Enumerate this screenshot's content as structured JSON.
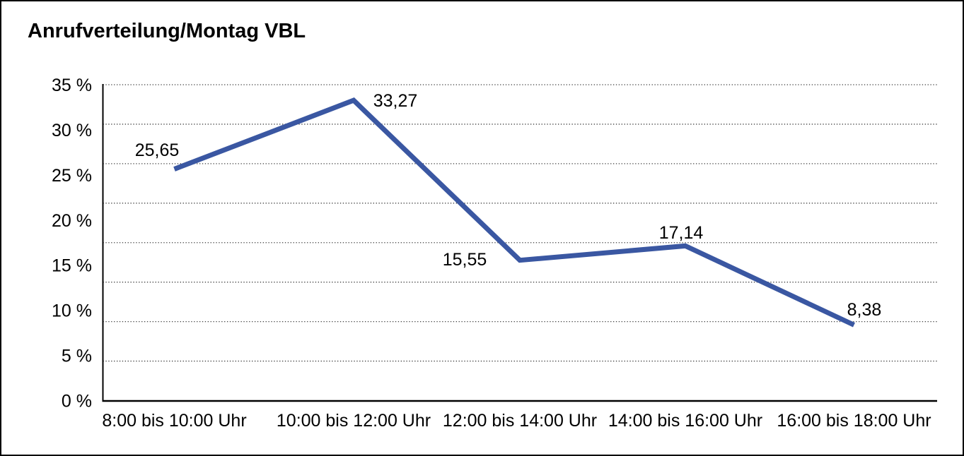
{
  "chart_data": {
    "type": "line",
    "title": "Anrufverteilung/Montag VBL",
    "categories": [
      "8:00 bis 10:00 Uhr",
      "10:00 bis 12:00 Uhr",
      "12:00 bis 14:00 Uhr",
      "14:00 bis 16:00 Uhr",
      "16:00 bis 18:00 Uhr"
    ],
    "values": [
      25.65,
      33.27,
      15.55,
      17.14,
      8.38
    ],
    "value_labels": [
      "25,65",
      "33,27",
      "15,55",
      "17,14",
      "8,38"
    ],
    "y_ticks": [
      {
        "value": 35,
        "label": "35 %"
      },
      {
        "value": 30,
        "label": "30 %"
      },
      {
        "value": 25,
        "label": "25 %"
      },
      {
        "value": 20,
        "label": "20 %"
      },
      {
        "value": 15,
        "label": "15 %"
      },
      {
        "value": 10,
        "label": "10 %"
      },
      {
        "value": 5,
        "label": "5 %"
      },
      {
        "value": 0,
        "label": "0 %"
      }
    ],
    "ylim": [
      0,
      35
    ],
    "xlabel": "",
    "ylabel": "",
    "legend": "none",
    "grid": "horizontal-dotted",
    "grid_divisions": 8,
    "series_color": "#3A57A2",
    "axis_color": "#000000",
    "grid_color": "#3c3c3c"
  }
}
